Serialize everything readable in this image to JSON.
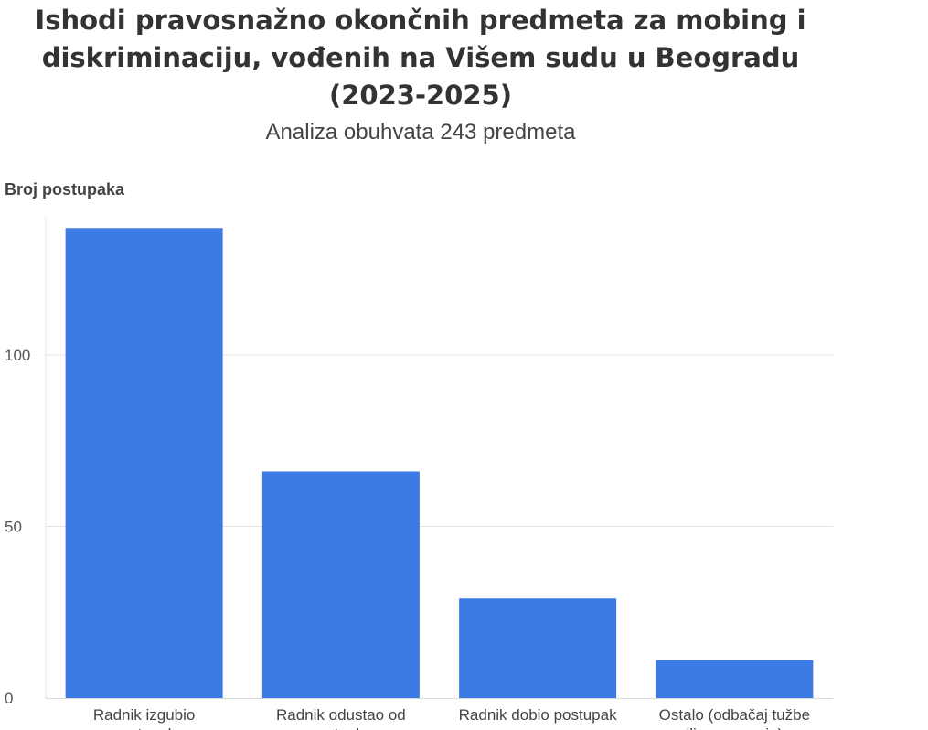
{
  "chart_data": {
    "type": "bar",
    "title": "Ishodi pravosnažno okončnih predmeta za mobing i diskriminaciju, vođenih na Višem sudu u Beogradu (2023-2025)",
    "subtitle": "Analiza obuhvata 243 predmeta",
    "xlabel": "",
    "ylabel": "Broj postupaka",
    "categories": [
      "Radnik izgubio postupak",
      "Radnik odustao od postupka",
      "Radnik dobio postupak",
      "Ostalo (odbačaj tužbe ili poravnanje)"
    ],
    "values": [
      137,
      66,
      29,
      11
    ],
    "ylim": [
      0,
      137
    ],
    "yticks": [
      0,
      50,
      100
    ],
    "grid": true,
    "bar_color": "#3d7be4",
    "grid_color": "#e5e5e5"
  }
}
